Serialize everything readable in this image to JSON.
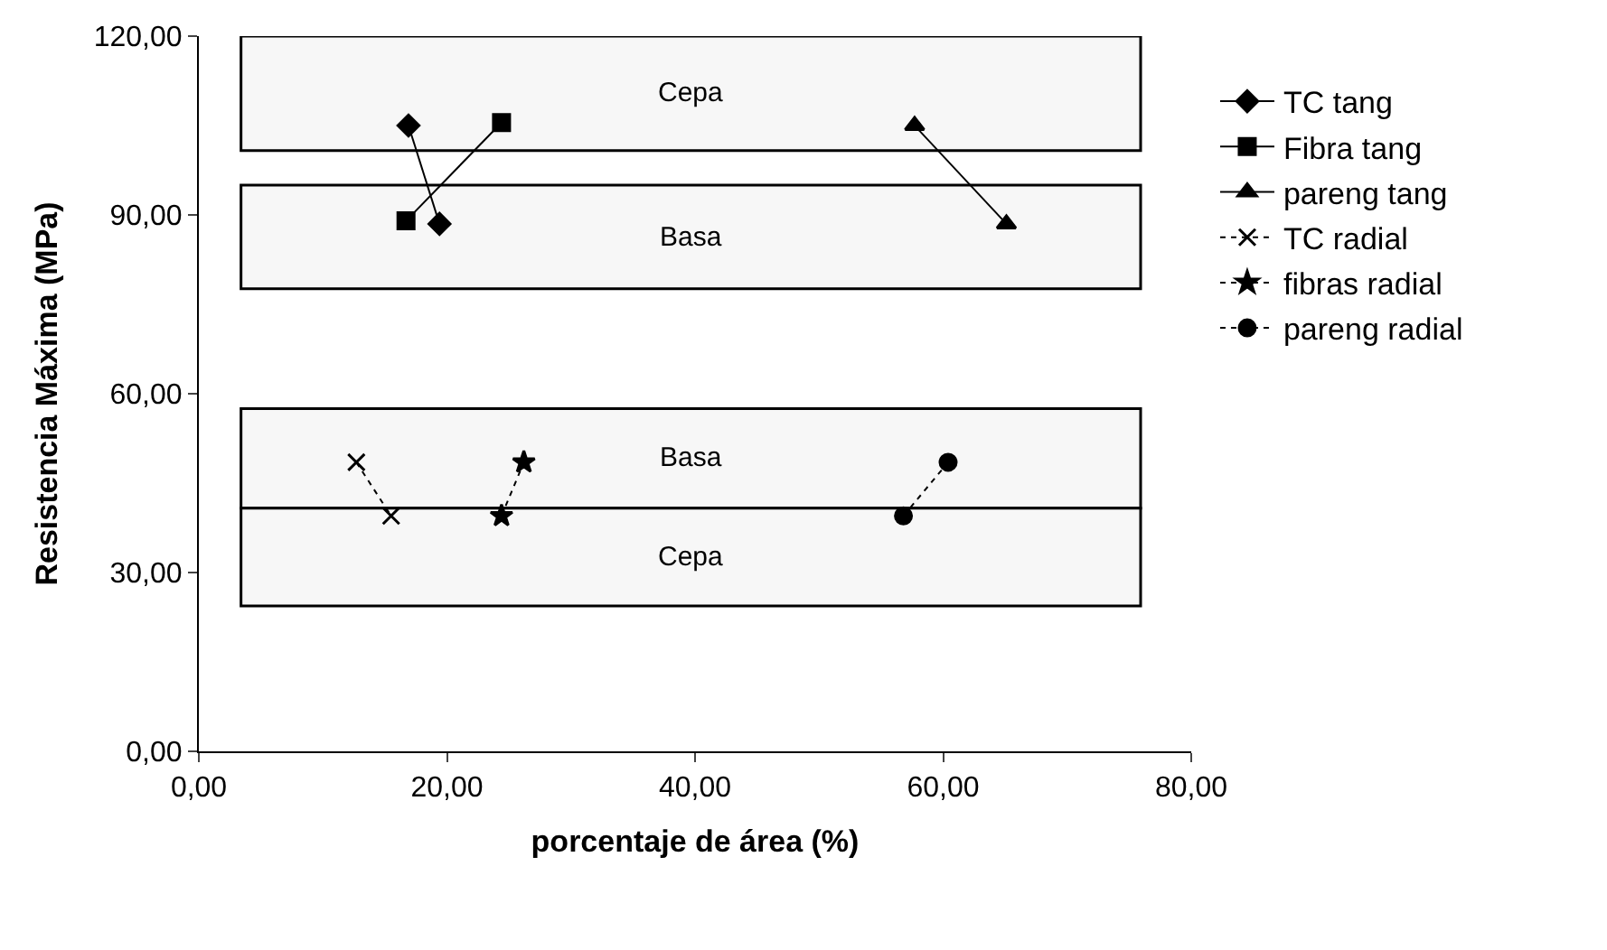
{
  "chart_data": {
    "type": "line",
    "xlabel": "porcentaje de área (%)",
    "ylabel": "Resistencia Máxima (MPa)",
    "xlim": [
      0,
      80
    ],
    "ylim": [
      0,
      120
    ],
    "xticks": [
      {
        "value": 0,
        "label": "0,00"
      },
      {
        "value": 20,
        "label": "20,00"
      },
      {
        "value": 40,
        "label": "40,00"
      },
      {
        "value": 60,
        "label": "60,00"
      },
      {
        "value": 80,
        "label": "80,00"
      }
    ],
    "yticks": [
      {
        "value": 0,
        "label": "0,00"
      },
      {
        "value": 30,
        "label": "30,00"
      },
      {
        "value": 60,
        "label": "60,00"
      },
      {
        "value": 90,
        "label": "90,00"
      },
      {
        "value": 120,
        "label": "120,00"
      }
    ],
    "grid": false,
    "legend": "right",
    "series": [
      {
        "name": "TC tang",
        "color": "#000000",
        "marker": "diamond",
        "line_style": "solid",
        "x": [
          16.9,
          19.4
        ],
        "values": [
          105,
          88.5
        ]
      },
      {
        "name": "Fibra tang",
        "color": "#000000",
        "marker": "square",
        "line_style": "solid",
        "x": [
          16.7,
          24.4
        ],
        "values": [
          89,
          105.5
        ]
      },
      {
        "name": "pareng tang",
        "color": "#000000",
        "marker": "triangle",
        "line_style": "solid",
        "x": [
          57.7,
          65.1
        ],
        "values": [
          105,
          88.5
        ]
      },
      {
        "name": "TC radial",
        "color": "#000000",
        "marker": "cross",
        "line_style": "dotted",
        "x": [
          12.7,
          15.5
        ],
        "values": [
          48.5,
          39.5
        ]
      },
      {
        "name": "fibras radial",
        "color": "#000000",
        "marker": "star",
        "line_style": "dotted",
        "x": [
          24.4,
          26.2
        ],
        "values": [
          39.5,
          48.5
        ]
      },
      {
        "name": "pareng radial",
        "color": "#000000",
        "marker": "circle",
        "line_style": "dotted",
        "x": [
          56.8,
          60.4
        ],
        "values": [
          39.5,
          48.5
        ]
      }
    ],
    "bands": [
      {
        "axis": "y",
        "from": 100.8,
        "to": 120,
        "label": "Cepa"
      },
      {
        "axis": "y",
        "from": 77.6,
        "to": 95,
        "label": "Basa"
      },
      {
        "axis": "y",
        "from": 40.8,
        "to": 57.5,
        "label": "Basa"
      },
      {
        "axis": "y",
        "from": 24.4,
        "to": 40.8,
        "label": "Cepa"
      }
    ]
  }
}
